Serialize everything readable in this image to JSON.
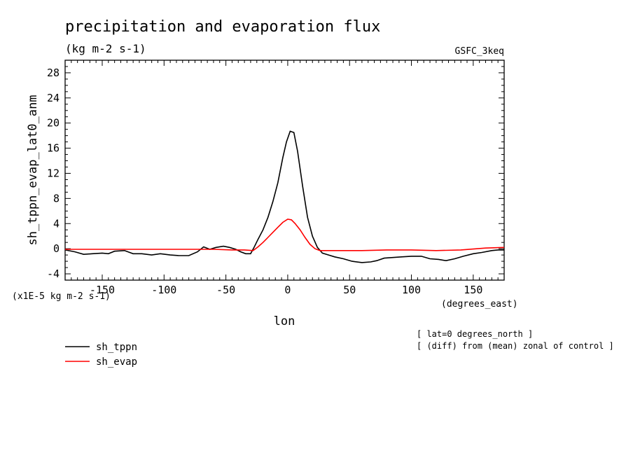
{
  "chart_data": {
    "type": "line",
    "title": "precipitation and evaporation flux",
    "subtitle": "(kg m-2 s-1)",
    "dataset": "GSFC_3keq",
    "ylabel": "sh_tppn_evap_lat0_anm",
    "xlabel": "lon",
    "x_units": "(degrees_east)",
    "y_scale_note": "(x1E-5 kg m-2 s-1)",
    "notes": [
      "[ lat=0 degrees_north ]",
      "[ (diff) from (mean) zonal of control ]"
    ],
    "xlim": [
      -180,
      175
    ],
    "ylim": [
      -5,
      30
    ],
    "x_ticks": [
      -150,
      -100,
      -50,
      0,
      50,
      100,
      150
    ],
    "x_tick_labels": [
      "-150",
      "-100",
      "-50",
      "0",
      "50",
      "100",
      "150"
    ],
    "y_ticks": [
      -4,
      0,
      4,
      8,
      12,
      16,
      20,
      24,
      28
    ],
    "y_tick_labels": [
      "-4",
      "0",
      "4",
      "8",
      "12",
      "16",
      "20",
      "24",
      "28"
    ],
    "series": [
      {
        "name": "sh_tppn",
        "color": "#000000",
        "x": [
          -180,
          -172,
          -165,
          -158,
          -150,
          -145,
          -140,
          -132,
          -125,
          -118,
          -110,
          -103,
          -95,
          -88,
          -80,
          -73,
          -68,
          -63,
          -58,
          -52,
          -47,
          -42,
          -38,
          -34,
          -30,
          -27,
          -24,
          -20,
          -16,
          -12,
          -8,
          -4,
          -1,
          2,
          5,
          8,
          12,
          16,
          20,
          24,
          28,
          33,
          38,
          45,
          52,
          60,
          67,
          72,
          78,
          85,
          92,
          100,
          108,
          115,
          122,
          128,
          135,
          142,
          150,
          157,
          165,
          170,
          175
        ],
        "y": [
          -0.2,
          -0.5,
          -0.9,
          -0.8,
          -0.7,
          -0.8,
          -0.4,
          -0.3,
          -0.8,
          -0.8,
          -1.0,
          -0.8,
          -1.0,
          -1.1,
          -1.1,
          -0.5,
          0.3,
          -0.1,
          0.2,
          0.4,
          0.2,
          -0.1,
          -0.5,
          -0.8,
          -0.8,
          0.3,
          1.5,
          3.0,
          5.0,
          7.5,
          10.5,
          14.5,
          17.0,
          18.7,
          18.5,
          15.5,
          10.0,
          5.0,
          2.0,
          0.2,
          -0.7,
          -1.0,
          -1.3,
          -1.6,
          -2.0,
          -2.2,
          -2.1,
          -1.9,
          -1.5,
          -1.4,
          -1.3,
          -1.2,
          -1.2,
          -1.6,
          -1.7,
          -1.9,
          -1.6,
          -1.2,
          -0.8,
          -0.6,
          -0.3,
          -0.2,
          -0.2
        ]
      },
      {
        "name": "sh_evap",
        "color": "#ff0000",
        "x": [
          -180,
          -160,
          -140,
          -120,
          -100,
          -80,
          -60,
          -45,
          -35,
          -28,
          -24,
          -20,
          -16,
          -12,
          -8,
          -4,
          0,
          3,
          6,
          10,
          14,
          18,
          22,
          26,
          30,
          40,
          60,
          80,
          100,
          120,
          140,
          160,
          175
        ],
        "y": [
          -0.1,
          -0.1,
          -0.1,
          -0.1,
          -0.1,
          -0.1,
          -0.1,
          -0.2,
          -0.2,
          -0.3,
          0.3,
          1.0,
          1.8,
          2.6,
          3.4,
          4.2,
          4.7,
          4.6,
          4.0,
          3.0,
          1.8,
          0.7,
          0.0,
          -0.3,
          -0.3,
          -0.3,
          -0.3,
          -0.2,
          -0.2,
          -0.3,
          -0.2,
          0.1,
          0.2
        ]
      }
    ],
    "grid": false,
    "legend_position": "bottom-left"
  }
}
